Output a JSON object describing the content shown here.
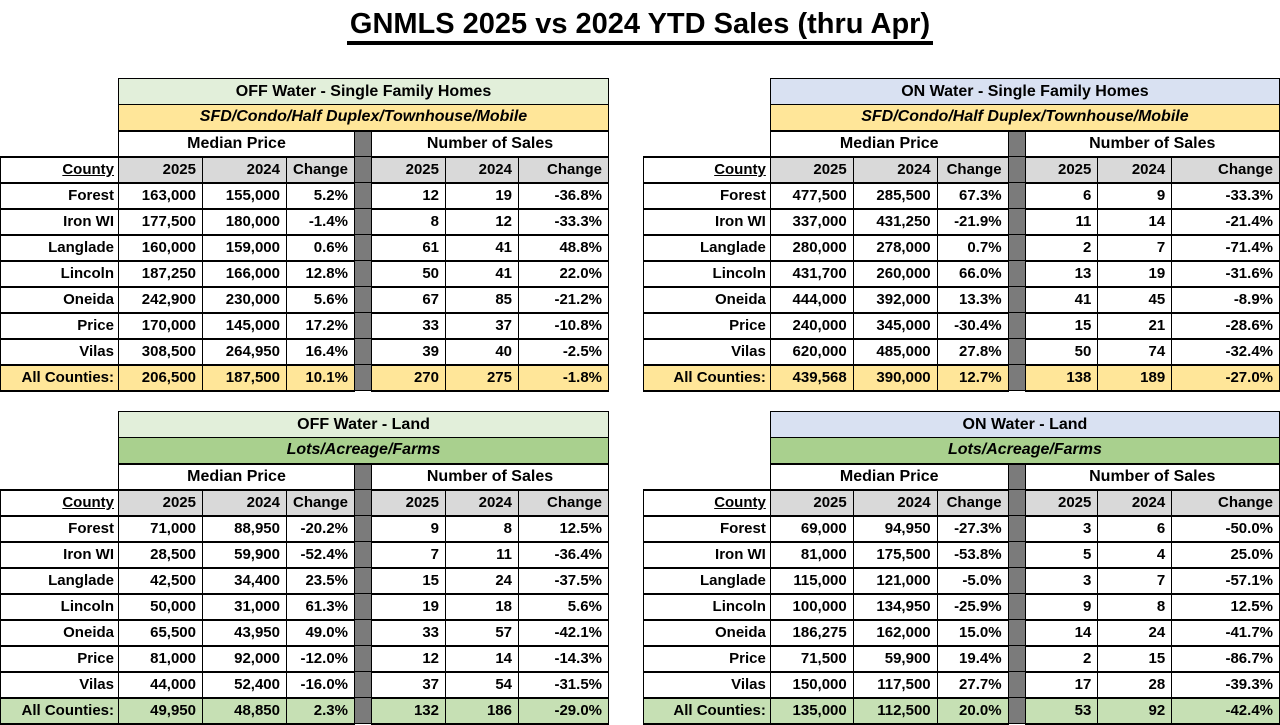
{
  "title": "GNMLS 2025 vs 2024 YTD Sales (thru Apr)",
  "colors": {
    "off_water_header": "#E2EFDA",
    "on_water_header": "#D9E1F2",
    "sfh_subtitle": "#FFE699",
    "land_subtitle": "#A9D08E",
    "column_header_gray": "#D9D9D9",
    "separator_gray": "#7B7B7B",
    "total_yellow": "#FFE699",
    "total_green": "#C6E0B4"
  },
  "column_headers": {
    "county": "County",
    "group1": "Median Price",
    "group2": "Number of Sales",
    "y2025": "2025",
    "y2024": "2024",
    "change": "Change"
  },
  "tables": [
    {
      "title": "OFF Water - Single Family Homes",
      "subtitle": "SFD/Condo/Half Duplex/Townhouse/Mobile",
      "title_bg": "#E2EFDA",
      "subtitle_bg": "#FFE699",
      "total_bg": "#FFE699",
      "rows": [
        {
          "county": "Forest",
          "mp2025": "163,000",
          "mp2024": "155,000",
          "mp_change": "5.2%",
          "ns2025": "12",
          "ns2024": "19",
          "ns_change": "-36.8%"
        },
        {
          "county": "Iron WI",
          "mp2025": "177,500",
          "mp2024": "180,000",
          "mp_change": "-1.4%",
          "ns2025": "8",
          "ns2024": "12",
          "ns_change": "-33.3%"
        },
        {
          "county": "Langlade",
          "mp2025": "160,000",
          "mp2024": "159,000",
          "mp_change": "0.6%",
          "ns2025": "61",
          "ns2024": "41",
          "ns_change": "48.8%"
        },
        {
          "county": "Lincoln",
          "mp2025": "187,250",
          "mp2024": "166,000",
          "mp_change": "12.8%",
          "ns2025": "50",
          "ns2024": "41",
          "ns_change": "22.0%"
        },
        {
          "county": "Oneida",
          "mp2025": "242,900",
          "mp2024": "230,000",
          "mp_change": "5.6%",
          "ns2025": "67",
          "ns2024": "85",
          "ns_change": "-21.2%"
        },
        {
          "county": "Price",
          "mp2025": "170,000",
          "mp2024": "145,000",
          "mp_change": "17.2%",
          "ns2025": "33",
          "ns2024": "37",
          "ns_change": "-10.8%"
        },
        {
          "county": "Vilas",
          "mp2025": "308,500",
          "mp2024": "264,950",
          "mp_change": "16.4%",
          "ns2025": "39",
          "ns2024": "40",
          "ns_change": "-2.5%"
        }
      ],
      "total": {
        "county": "All Counties:",
        "mp2025": "206,500",
        "mp2024": "187,500",
        "mp_change": "10.1%",
        "ns2025": "270",
        "ns2024": "275",
        "ns_change": "-1.8%"
      }
    },
    {
      "title": "ON Water - Single Family Homes",
      "subtitle": "SFD/Condo/Half Duplex/Townhouse/Mobile",
      "title_bg": "#D9E1F2",
      "subtitle_bg": "#FFE699",
      "total_bg": "#FFE699",
      "rows": [
        {
          "county": "Forest",
          "mp2025": "477,500",
          "mp2024": "285,500",
          "mp_change": "67.3%",
          "ns2025": "6",
          "ns2024": "9",
          "ns_change": "-33.3%"
        },
        {
          "county": "Iron WI",
          "mp2025": "337,000",
          "mp2024": "431,250",
          "mp_change": "-21.9%",
          "ns2025": "11",
          "ns2024": "14",
          "ns_change": "-21.4%"
        },
        {
          "county": "Langlade",
          "mp2025": "280,000",
          "mp2024": "278,000",
          "mp_change": "0.7%",
          "ns2025": "2",
          "ns2024": "7",
          "ns_change": "-71.4%"
        },
        {
          "county": "Lincoln",
          "mp2025": "431,700",
          "mp2024": "260,000",
          "mp_change": "66.0%",
          "ns2025": "13",
          "ns2024": "19",
          "ns_change": "-31.6%"
        },
        {
          "county": "Oneida",
          "mp2025": "444,000",
          "mp2024": "392,000",
          "mp_change": "13.3%",
          "ns2025": "41",
          "ns2024": "45",
          "ns_change": "-8.9%"
        },
        {
          "county": "Price",
          "mp2025": "240,000",
          "mp2024": "345,000",
          "mp_change": "-30.4%",
          "ns2025": "15",
          "ns2024": "21",
          "ns_change": "-28.6%"
        },
        {
          "county": "Vilas",
          "mp2025": "620,000",
          "mp2024": "485,000",
          "mp_change": "27.8%",
          "ns2025": "50",
          "ns2024": "74",
          "ns_change": "-32.4%"
        }
      ],
      "total": {
        "county": "All Counties:",
        "mp2025": "439,568",
        "mp2024": "390,000",
        "mp_change": "12.7%",
        "ns2025": "138",
        "ns2024": "189",
        "ns_change": "-27.0%"
      }
    },
    {
      "title": "OFF Water - Land",
      "subtitle": "Lots/Acreage/Farms",
      "title_bg": "#E2EFDA",
      "subtitle_bg": "#A9D08E",
      "total_bg": "#C6E0B4",
      "rows": [
        {
          "county": "Forest",
          "mp2025": "71,000",
          "mp2024": "88,950",
          "mp_change": "-20.2%",
          "ns2025": "9",
          "ns2024": "8",
          "ns_change": "12.5%"
        },
        {
          "county": "Iron WI",
          "mp2025": "28,500",
          "mp2024": "59,900",
          "mp_change": "-52.4%",
          "ns2025": "7",
          "ns2024": "11",
          "ns_change": "-36.4%"
        },
        {
          "county": "Langlade",
          "mp2025": "42,500",
          "mp2024": "34,400",
          "mp_change": "23.5%",
          "ns2025": "15",
          "ns2024": "24",
          "ns_change": "-37.5%"
        },
        {
          "county": "Lincoln",
          "mp2025": "50,000",
          "mp2024": "31,000",
          "mp_change": "61.3%",
          "ns2025": "19",
          "ns2024": "18",
          "ns_change": "5.6%"
        },
        {
          "county": "Oneida",
          "mp2025": "65,500",
          "mp2024": "43,950",
          "mp_change": "49.0%",
          "ns2025": "33",
          "ns2024": "57",
          "ns_change": "-42.1%"
        },
        {
          "county": "Price",
          "mp2025": "81,000",
          "mp2024": "92,000",
          "mp_change": "-12.0%",
          "ns2025": "12",
          "ns2024": "14",
          "ns_change": "-14.3%"
        },
        {
          "county": "Vilas",
          "mp2025": "44,000",
          "mp2024": "52,400",
          "mp_change": "-16.0%",
          "ns2025": "37",
          "ns2024": "54",
          "ns_change": "-31.5%"
        }
      ],
      "total": {
        "county": "All Counties:",
        "mp2025": "49,950",
        "mp2024": "48,850",
        "mp_change": "2.3%",
        "ns2025": "132",
        "ns2024": "186",
        "ns_change": "-29.0%"
      }
    },
    {
      "title": "ON Water - Land",
      "subtitle": "Lots/Acreage/Farms",
      "title_bg": "#D9E1F2",
      "subtitle_bg": "#A9D08E",
      "total_bg": "#C6E0B4",
      "rows": [
        {
          "county": "Forest",
          "mp2025": "69,000",
          "mp2024": "94,950",
          "mp_change": "-27.3%",
          "ns2025": "3",
          "ns2024": "6",
          "ns_change": "-50.0%"
        },
        {
          "county": "Iron WI",
          "mp2025": "81,000",
          "mp2024": "175,500",
          "mp_change": "-53.8%",
          "ns2025": "5",
          "ns2024": "4",
          "ns_change": "25.0%"
        },
        {
          "county": "Langlade",
          "mp2025": "115,000",
          "mp2024": "121,000",
          "mp_change": "-5.0%",
          "ns2025": "3",
          "ns2024": "7",
          "ns_change": "-57.1%"
        },
        {
          "county": "Lincoln",
          "mp2025": "100,000",
          "mp2024": "134,950",
          "mp_change": "-25.9%",
          "ns2025": "9",
          "ns2024": "8",
          "ns_change": "12.5%"
        },
        {
          "county": "Oneida",
          "mp2025": "186,275",
          "mp2024": "162,000",
          "mp_change": "15.0%",
          "ns2025": "14",
          "ns2024": "24",
          "ns_change": "-41.7%"
        },
        {
          "county": "Price",
          "mp2025": "71,500",
          "mp2024": "59,900",
          "mp_change": "19.4%",
          "ns2025": "2",
          "ns2024": "15",
          "ns_change": "-86.7%"
        },
        {
          "county": "Vilas",
          "mp2025": "150,000",
          "mp2024": "117,500",
          "mp_change": "27.7%",
          "ns2025": "17",
          "ns2024": "28",
          "ns_change": "-39.3%"
        }
      ],
      "total": {
        "county": "All Counties:",
        "mp2025": "135,000",
        "mp2024": "112,500",
        "mp_change": "20.0%",
        "ns2025": "53",
        "ns2024": "92",
        "ns_change": "-42.4%"
      }
    }
  ]
}
